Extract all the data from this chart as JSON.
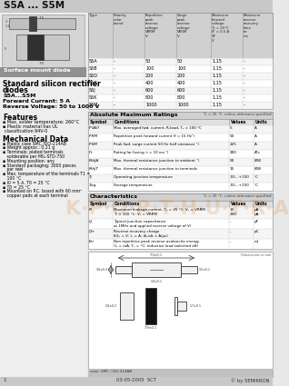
{
  "title": "S5A ... S5M",
  "type_table_data": [
    [
      "S5A",
      "-",
      "50",
      "50",
      "1.15",
      "-"
    ],
    [
      "S5B",
      "-",
      "100",
      "100",
      "1.15",
      "-"
    ],
    [
      "S5D",
      "-",
      "200",
      "200",
      "1.15",
      "-"
    ],
    [
      "S5G",
      "-",
      "400",
      "400",
      "1.15",
      "-"
    ],
    [
      "S5J",
      "-",
      "600",
      "600",
      "1.15",
      "-"
    ],
    [
      "S5K",
      "-",
      "800",
      "800",
      "1.15",
      "-"
    ],
    [
      "S5M",
      "-",
      "1000",
      "1000",
      "1.15",
      "-"
    ]
  ],
  "abs_syms": [
    "IF(AV)",
    "IFRM",
    "IFSM",
    "I²t",
    "RthJA",
    "RthJT",
    "Tj",
    "Tstg"
  ],
  "abs_conds": [
    "Max. averaged fwd. current, R-load, T₀ = 100 °C",
    "Repetitive peak forward current (f = 15 Hz¹)",
    "Peak fwd. surge current 50 Hz half sinewave ¹)",
    "Rating for fusing, t = 10 ms ¹)",
    "Max. thermal resistance junction to ambient ¹)",
    "Max. thermal resistance junction to terminals",
    "Operating junction temperature",
    "Storage temperature"
  ],
  "abs_vals": [
    "5",
    "50",
    "225",
    "300",
    "50",
    "15",
    "-55...+150",
    "-55...+150"
  ],
  "abs_units": [
    "A",
    "A",
    "A",
    "A²s",
    "K/W",
    "K/W",
    "°C",
    "°C"
  ],
  "char_rows": [
    [
      "IR",
      "Maximum leakage current, T₀ = 25 °C: V₀ = VRRM\nT₀ = 100 °C: V₀ = VRRM",
      "10\n250",
      "μA\nμA"
    ],
    [
      "CJ",
      "Typical junction capacitance\nat 1MHz and applied reverse voltage of V)",
      "-",
      "pF"
    ],
    [
      "Qrr",
      "Reverse recovery charge\nδQ₀ = V; I₀ = A; dI₀/dt = A/μs)",
      "-",
      "pC"
    ],
    [
      "Err",
      "Non repetitive peak reverse avalanche energy\n(I₀ = mA; T₀ = °C; inductive load switched off)",
      "-",
      "mJ"
    ]
  ],
  "mech_items": [
    "▪ Plastic case SMC /DO-214AB",
    "▪ Weight approx.: 0.21 g",
    "▪ Terminals: plated terminals",
    "   solderable per MIL-STD-750",
    "▪ Mounting position: any",
    "▪ Standard packaging: 3000 pieces",
    "   per reel",
    "▪ Max. temperature of the terminals T1 =",
    "   100 °C",
    "▪ I0 = 5 A, T0 = 25 °C",
    "▪ T0 = 25 °C",
    "▪ Mounted on P.C. board with 60 mm²",
    "   copper pads at each terminal"
  ],
  "bg_gray": "#e8e8e8",
  "left_bg": "#eeeeee",
  "title_bg": "#c8c8c8",
  "table_hdr_bg": "#d0d0d0",
  "sub_hdr_bg": "#e0e0e0",
  "orange": "#e07820"
}
